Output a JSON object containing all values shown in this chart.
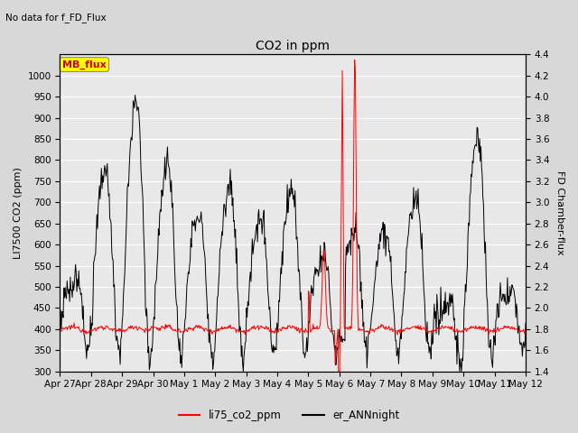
{
  "title": "CO2 in ppm",
  "subtitle": "No data for f_FD_Flux",
  "ylabel_left": "LI7500 CO2 (ppm)",
  "ylabel_right": "FD Chamber-flux",
  "ylim_left": [
    300,
    1050
  ],
  "ylim_right": [
    1.4,
    4.4
  ],
  "yticks_left": [
    300,
    350,
    400,
    450,
    500,
    550,
    600,
    650,
    700,
    750,
    800,
    850,
    900,
    950,
    1000
  ],
  "yticks_right": [
    1.4,
    1.6,
    1.8,
    2.0,
    2.2,
    2.4,
    2.6,
    2.8,
    3.0,
    3.2,
    3.4,
    3.6,
    3.8,
    4.0,
    4.2,
    4.4
  ],
  "xtick_labels": [
    "Apr 27",
    "Apr 28",
    "Apr 29",
    "Apr 30",
    "May 1",
    "May 2",
    "May 3",
    "May 4",
    "May 5",
    "May 6",
    "May 7",
    "May 8",
    "May 9",
    "May 10",
    "May 11",
    "May 12"
  ],
  "line1_color": "#ff0000",
  "line2_color": "#000000",
  "legend_line1": "li75_co2_ppm",
  "legend_line2": "er_ANNnight",
  "mb_flux_box_color": "#ffff00",
  "mb_flux_text_color": "#cc0000",
  "plot_bg_color": "#e8e8e8",
  "fig_bg_color": "#d8d8d8",
  "grid_color": "#ffffff"
}
